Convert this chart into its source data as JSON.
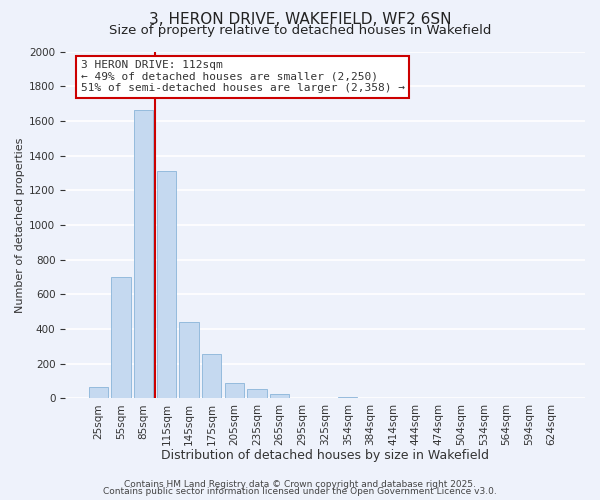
{
  "title": "3, HERON DRIVE, WAKEFIELD, WF2 6SN",
  "subtitle": "Size of property relative to detached houses in Wakefield",
  "xlabel": "Distribution of detached houses by size in Wakefield",
  "ylabel": "Number of detached properties",
  "bar_labels": [
    "25sqm",
    "55sqm",
    "85sqm",
    "115sqm",
    "145sqm",
    "175sqm",
    "205sqm",
    "235sqm",
    "265sqm",
    "295sqm",
    "325sqm",
    "354sqm",
    "384sqm",
    "414sqm",
    "444sqm",
    "474sqm",
    "504sqm",
    "534sqm",
    "564sqm",
    "594sqm",
    "624sqm"
  ],
  "bar_values": [
    65,
    700,
    1660,
    1310,
    440,
    255,
    90,
    55,
    25,
    0,
    0,
    10,
    0,
    0,
    0,
    0,
    0,
    0,
    0,
    0,
    0
  ],
  "bar_color": "#c5d9f0",
  "bar_edge_color": "#8ab4d9",
  "vline_color": "#cc0000",
  "ylim": [
    0,
    2000
  ],
  "yticks": [
    0,
    200,
    400,
    600,
    800,
    1000,
    1200,
    1400,
    1600,
    1800,
    2000
  ],
  "annotation_line1": "3 HERON DRIVE: 112sqm",
  "annotation_line2": "← 49% of detached houses are smaller (2,250)",
  "annotation_line3": "51% of semi-detached houses are larger (2,358) →",
  "annotation_box_color": "#ffffff",
  "annotation_box_edge_color": "#cc0000",
  "footer_line1": "Contains HM Land Registry data © Crown copyright and database right 2025.",
  "footer_line2": "Contains public sector information licensed under the Open Government Licence v3.0.",
  "background_color": "#eef2fb",
  "grid_color": "#ffffff",
  "title_fontsize": 11,
  "subtitle_fontsize": 9.5,
  "xlabel_fontsize": 9,
  "ylabel_fontsize": 8,
  "tick_fontsize": 7.5,
  "annotation_fontsize": 8,
  "footer_fontsize": 6.5
}
